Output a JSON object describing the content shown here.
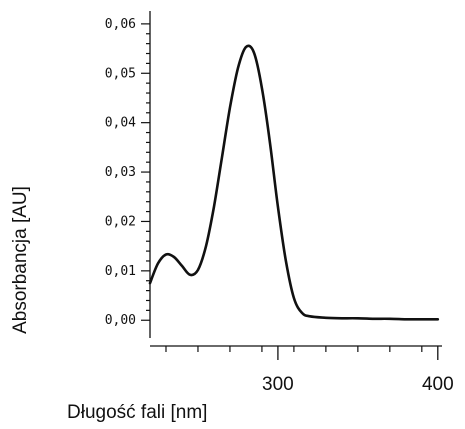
{
  "chart_data": {
    "type": "line",
    "xlabel": "Długość fali [nm]",
    "ylabel": "Absorbancja [AU]",
    "xlim": [
      220,
      402
    ],
    "ylim": [
      -0.004,
      0.062
    ],
    "x_ticks": [
      {
        "value": 300,
        "label": "300"
      },
      {
        "value": 400,
        "label": "400"
      }
    ],
    "y_ticks": [
      {
        "value": 0.0,
        "label": "0,00"
      },
      {
        "value": 0.01,
        "label": "0,01"
      },
      {
        "value": 0.02,
        "label": "0,02"
      },
      {
        "value": 0.03,
        "label": "0,03"
      },
      {
        "value": 0.04,
        "label": "0,04"
      },
      {
        "value": 0.05,
        "label": "0,05"
      },
      {
        "value": 0.06,
        "label": "0,06"
      }
    ],
    "grid": false,
    "series": [
      {
        "x": [
          220,
          225,
          230,
          235,
          240,
          245,
          250,
          255,
          260,
          265,
          270,
          275,
          280,
          285,
          290,
          295,
          300,
          305,
          310,
          315,
          320,
          330,
          340,
          350,
          360,
          370,
          380,
          390,
          400
        ],
        "y": [
          0.0075,
          0.0115,
          0.0133,
          0.0128,
          0.011,
          0.0092,
          0.0102,
          0.015,
          0.023,
          0.033,
          0.043,
          0.051,
          0.0553,
          0.0542,
          0.047,
          0.036,
          0.023,
          0.012,
          0.0045,
          0.0015,
          0.0008,
          0.0005,
          0.0004,
          0.0004,
          0.0003,
          0.0003,
          0.0002,
          0.0002,
          0.0002
        ]
      }
    ]
  }
}
